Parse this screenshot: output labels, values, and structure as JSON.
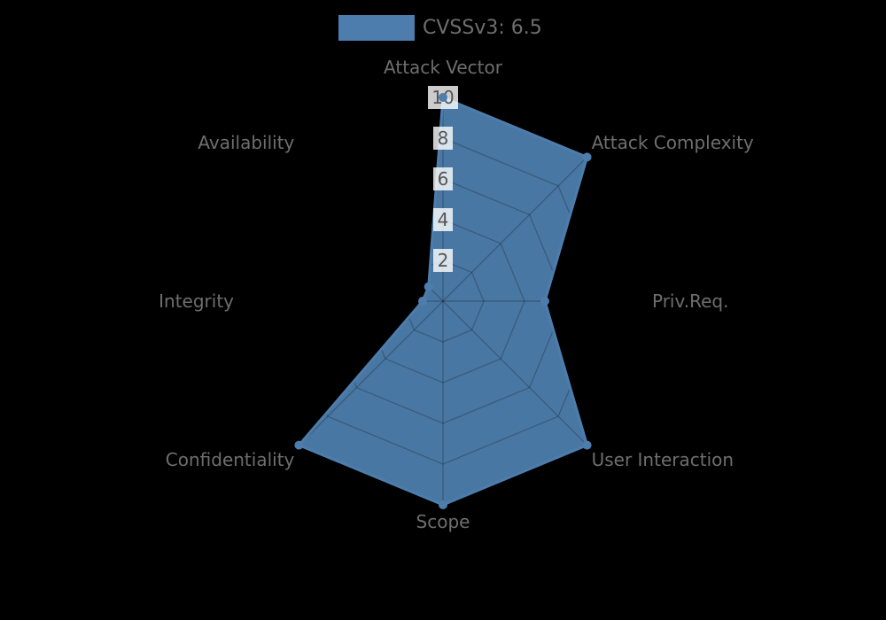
{
  "page": {
    "background": "#000000"
  },
  "chart_data": {
    "type": "radar",
    "title": "CVSSv3: 6.5",
    "legend": {
      "label": "CVSSv3: 6.5",
      "swatch_color": "#4d7dac",
      "position": "top"
    },
    "categories": [
      "Attack Vector",
      "Attack Complexity",
      "Priv.Req.",
      "User Interaction",
      "Scope",
      "Confidentiality",
      "Integrity",
      "Availability"
    ],
    "series": [
      {
        "name": "CVSSv3: 6.5",
        "color": "#4d7dac",
        "values": [
          10,
          10,
          5,
          10,
          10,
          10,
          1,
          1
        ]
      }
    ],
    "scale": {
      "min": 0,
      "max": 10,
      "ticks": [
        2,
        4,
        6,
        8,
        10
      ]
    },
    "layout_hints": {
      "grid": "spider-web, visible only over filled area",
      "axes_order": "clockwise from top"
    },
    "style": {
      "fill_opacity": 0.95,
      "grid_color": "rgba(0,0,0,0.22)",
      "axis_label_color": "#6e6e6e",
      "tick_label_color": "#555555",
      "tick_label_bg": "rgba(255,255,255,0.8)",
      "legend_text_color": "#6e6e6e"
    }
  }
}
